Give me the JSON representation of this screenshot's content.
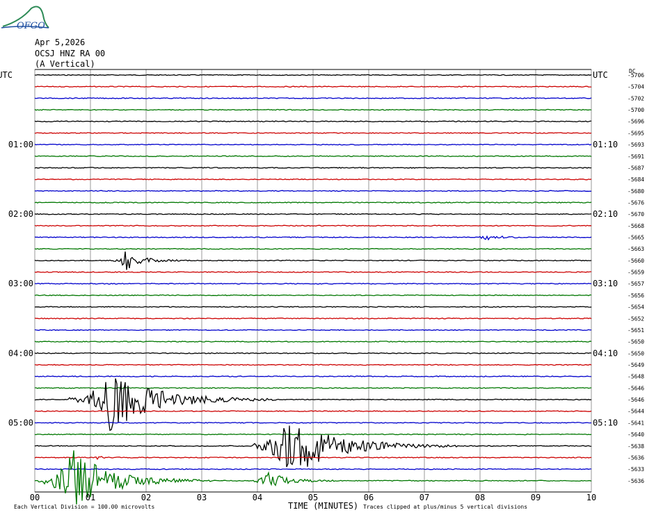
{
  "header": {
    "logo": "OFGO",
    "date": "Apr 5,2026",
    "station": "OCSJ HNZ RA 00",
    "component": "(A Vertical)"
  },
  "left_labels": [
    "UTC",
    "01:00",
    "02:00",
    "03:00",
    "04:00",
    "05:00"
  ],
  "right_labels": [
    "UTC",
    "01:10",
    "02:10",
    "03:10",
    "04:10",
    "05:10"
  ],
  "right_corner": "DC",
  "row_values": [
    "-5706",
    "-5704",
    "-5702",
    "-5700",
    "-5696",
    "-5695",
    "-5693",
    "-5691",
    "-5687",
    "-5684",
    "-5680",
    "-5676",
    "-5670",
    "-5668",
    "-5665",
    "-5663",
    "-5660",
    "-5659",
    "-5657",
    "-5656",
    "-5654",
    "-5652",
    "-5651",
    "-5650",
    "-5650",
    "-5649",
    "-5648",
    "-5646",
    "-5646",
    "-5644",
    "-5641",
    "-5640",
    "-5638",
    "-5636",
    "-5633",
    "-5636"
  ],
  "x_ticks": [
    "00",
    "01",
    "02",
    "03",
    "04",
    "05",
    "06",
    "07",
    "08",
    "09",
    "10"
  ],
  "footer": {
    "scale": "Each Vertical Division =  100.00 microvolts",
    "axis_title": "TIME (MINUTES)",
    "clip_note": "Traces clipped at plus/minus 5 vertical divisions"
  }
}
